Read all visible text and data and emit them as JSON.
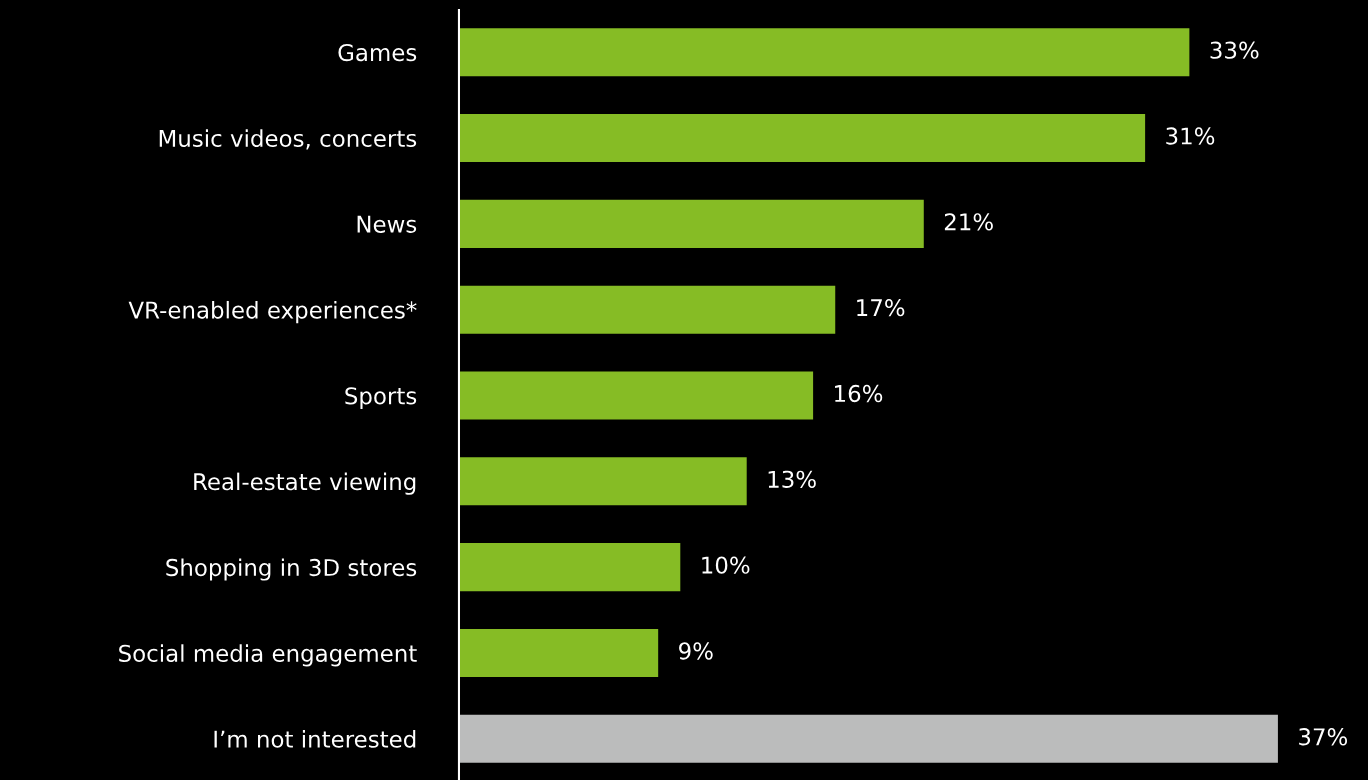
{
  "chart_data": {
    "type": "bar",
    "orientation": "horizontal",
    "categories": [
      "Games",
      "Music videos, concerts",
      "News",
      "VR-enabled experiences*",
      "Sports",
      "Real-estate viewing",
      "Shopping in 3D stores",
      "Social media engagement",
      "I’m not interested"
    ],
    "values": [
      33,
      31,
      21,
      17,
      16,
      13,
      10,
      9,
      37
    ],
    "value_labels": [
      "33%",
      "31%",
      "21%",
      "17%",
      "16%",
      "13%",
      "10%",
      "9%",
      "37%"
    ],
    "colors": [
      "#86bc25",
      "#86bc25",
      "#86bc25",
      "#86bc25",
      "#86bc25",
      "#86bc25",
      "#86bc25",
      "#86bc25",
      "#bbbcbc"
    ],
    "grid": false,
    "legend": false
  }
}
